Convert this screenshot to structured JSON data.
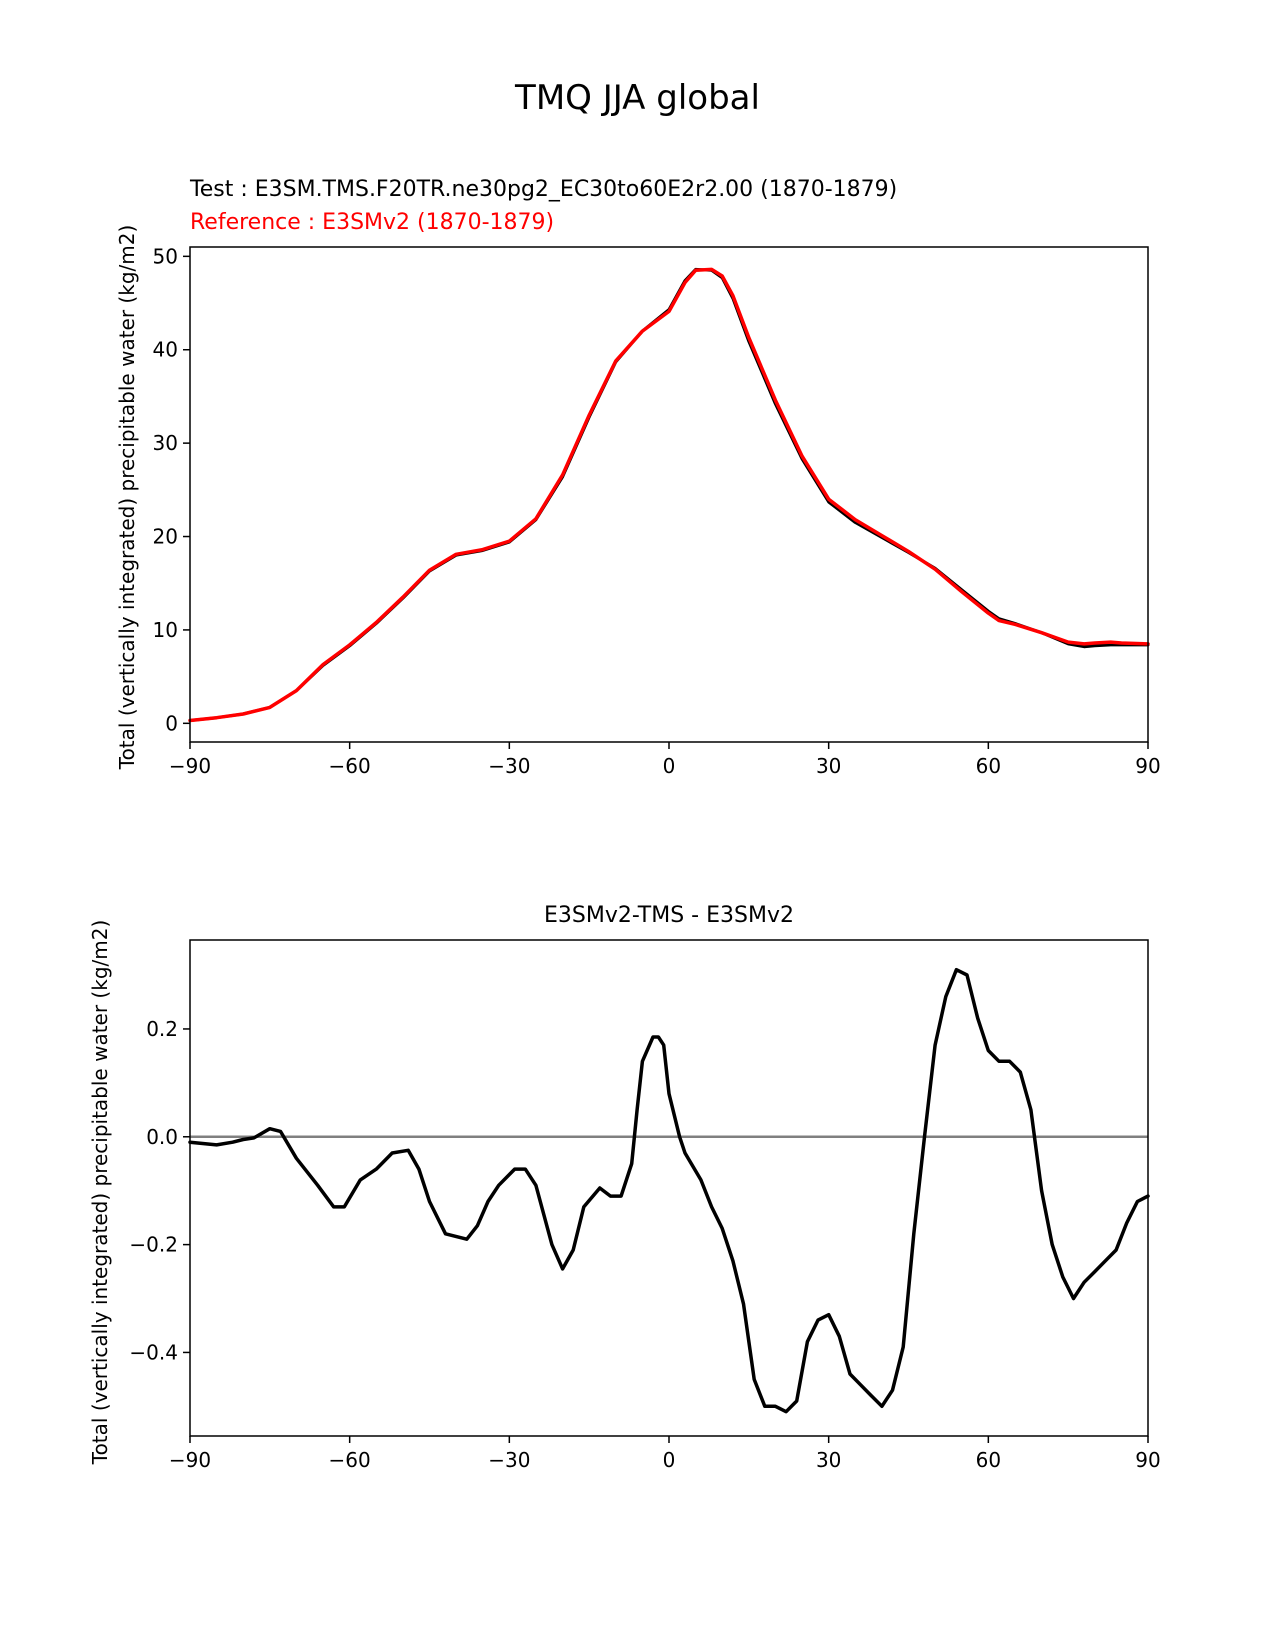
{
  "figure": {
    "title": "TMQ JJA global"
  },
  "chart_data": [
    {
      "type": "line",
      "test_label": "Test : E3SM.TMS.F20TR.ne30pg2_EC30to60E2r2.00 (1870-1879)",
      "reference_label": "Reference : E3SMv2 (1870-1879)",
      "xlabel": "",
      "ylabel": "Total (vertically integrated) precipitable water (kg/m2)",
      "xlim": [
        -90,
        90
      ],
      "ylim": [
        -2,
        51
      ],
      "x_ticks": [
        -90,
        -60,
        -30,
        0,
        30,
        60,
        90
      ],
      "x_tick_labels": [
        "−90",
        "−60",
        "−30",
        "0",
        "30",
        "60",
        "90"
      ],
      "y_ticks": [
        0,
        10,
        20,
        30,
        40,
        50
      ],
      "y_tick_labels": [
        "0",
        "10",
        "20",
        "30",
        "40",
        "50"
      ],
      "colors": {
        "test": "#000000",
        "reference": "#ff0000"
      },
      "series": [
        {
          "name": "test",
          "x": [
            -90,
            -85,
            -80,
            -75,
            -70,
            -65,
            -60,
            -55,
            -50,
            -45,
            -40,
            -35,
            -30,
            -25,
            -20,
            -15,
            -10,
            -5,
            0,
            3,
            5,
            8,
            10,
            12,
            15,
            20,
            25,
            30,
            35,
            40,
            45,
            50,
            55,
            60,
            62,
            65,
            70,
            75,
            78,
            80,
            83,
            85,
            90
          ],
          "values": [
            0.3,
            0.6,
            1.0,
            1.7,
            3.5,
            6.2,
            8.3,
            10.7,
            13.4,
            16.3,
            18.0,
            18.5,
            19.4,
            21.8,
            26.4,
            32.8,
            38.7,
            42.0,
            44.3,
            47.4,
            48.6,
            48.5,
            47.7,
            45.5,
            40.9,
            34.2,
            28.3,
            23.7,
            21.5,
            19.9,
            18.3,
            16.6,
            14.3,
            12.0,
            11.2,
            10.7,
            9.7,
            8.5,
            8.2,
            8.3,
            8.4,
            8.4,
            8.4
          ]
        },
        {
          "name": "reference",
          "x": [
            -90,
            -85,
            -80,
            -75,
            -70,
            -65,
            -60,
            -55,
            -50,
            -45,
            -40,
            -35,
            -30,
            -25,
            -20,
            -15,
            -10,
            -5,
            0,
            3,
            5,
            8,
            10,
            12,
            15,
            20,
            25,
            30,
            35,
            40,
            45,
            50,
            55,
            60,
            62,
            65,
            70,
            75,
            78,
            80,
            83,
            85,
            90
          ],
          "values": [
            0.3,
            0.6,
            1.0,
            1.7,
            3.5,
            6.3,
            8.4,
            10.8,
            13.5,
            16.4,
            18.1,
            18.6,
            19.5,
            21.9,
            26.6,
            33.0,
            38.8,
            42.0,
            44.1,
            47.2,
            48.5,
            48.6,
            47.9,
            45.8,
            41.3,
            34.6,
            28.6,
            24.0,
            21.8,
            20.1,
            18.4,
            16.5,
            14.1,
            11.8,
            11.0,
            10.6,
            9.7,
            8.7,
            8.5,
            8.6,
            8.7,
            8.6,
            8.5
          ]
        }
      ]
    },
    {
      "type": "line",
      "title": "E3SMv2-TMS - E3SMv2",
      "xlabel": "",
      "ylabel": "Total (vertically integrated) precipitable water (kg/m2)",
      "xlim": [
        -90,
        90
      ],
      "ylim": [
        -0.555,
        0.365
      ],
      "x_ticks": [
        -90,
        -60,
        -30,
        0,
        30,
        60,
        90
      ],
      "x_tick_labels": [
        "−90",
        "−60",
        "−30",
        "0",
        "30",
        "60",
        "90"
      ],
      "y_ticks": [
        -0.4,
        -0.2,
        0.0,
        0.2
      ],
      "y_tick_labels": [
        "−0.4",
        "−0.2",
        "0.0",
        "0.2"
      ],
      "zero_line": {
        "y": 0.0,
        "color": "#808080"
      },
      "colors": {
        "diff": "#000000"
      },
      "series": [
        {
          "name": "diff",
          "x": [
            -90,
            -85,
            -82,
            -80,
            -78,
            -75,
            -73,
            -70,
            -66,
            -63,
            -61,
            -58,
            -55,
            -52,
            -49,
            -47,
            -45,
            -42,
            -38,
            -36,
            -34,
            -32,
            -29,
            -27,
            -25,
            -22,
            -20,
            -18,
            -16,
            -13,
            -11,
            -9,
            -7,
            -6,
            -5,
            -3,
            -2,
            -1,
            0,
            2,
            3,
            6,
            8,
            10,
            12,
            14,
            16,
            18,
            20,
            22,
            24,
            26,
            28,
            30,
            32,
            34,
            36,
            38,
            40,
            42,
            44,
            46,
            48,
            50,
            52,
            54,
            56,
            58,
            60,
            62,
            64,
            66,
            68,
            70,
            72,
            74,
            76,
            78,
            80,
            82,
            84,
            86,
            88,
            90
          ],
          "values": [
            -0.01,
            -0.015,
            -0.01,
            -0.005,
            -0.002,
            0.015,
            0.01,
            -0.04,
            -0.09,
            -0.13,
            -0.13,
            -0.08,
            -0.06,
            -0.03,
            -0.025,
            -0.06,
            -0.12,
            -0.18,
            -0.19,
            -0.165,
            -0.12,
            -0.09,
            -0.06,
            -0.06,
            -0.09,
            -0.2,
            -0.245,
            -0.21,
            -0.13,
            -0.095,
            -0.11,
            -0.11,
            -0.05,
            0.05,
            0.14,
            0.185,
            0.185,
            0.17,
            0.08,
            0.0,
            -0.03,
            -0.08,
            -0.13,
            -0.17,
            -0.23,
            -0.31,
            -0.45,
            -0.5,
            -0.5,
            -0.51,
            -0.49,
            -0.38,
            -0.34,
            -0.33,
            -0.37,
            -0.44,
            -0.46,
            -0.48,
            -0.5,
            -0.47,
            -0.39,
            -0.18,
            0.0,
            0.17,
            0.26,
            0.31,
            0.3,
            0.22,
            0.16,
            0.14,
            0.14,
            0.12,
            0.05,
            -0.1,
            -0.2,
            -0.26,
            -0.3,
            -0.27,
            -0.25,
            -0.23,
            -0.21,
            -0.16,
            -0.12,
            -0.11
          ]
        }
      ]
    }
  ]
}
